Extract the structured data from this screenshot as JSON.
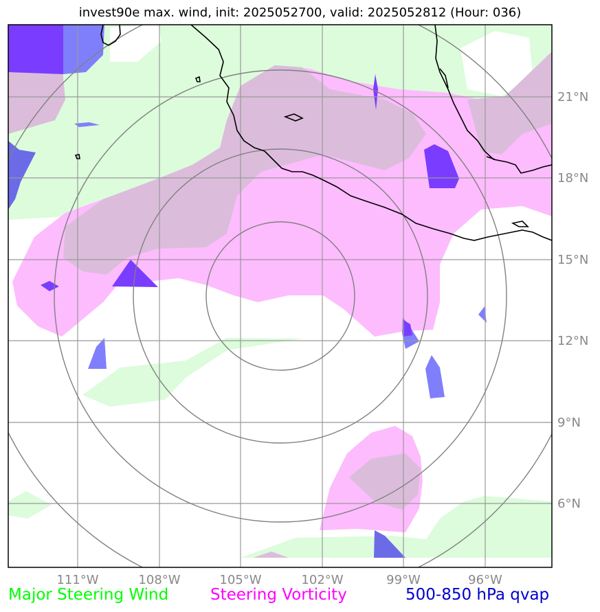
{
  "title": "invest90e max. wind, init: 2025052700, valid: 2025052812 (Hour: 036)",
  "lon_labels": [
    "111°W",
    "108°W",
    "105°W",
    "102°W",
    "99°W",
    "96°W"
  ],
  "lat_labels": [
    "21°N",
    "18°N",
    "15°N",
    "12°N",
    "9°N",
    "6°N"
  ],
  "legend": [
    {
      "label": "Major Steering Wind",
      "color": "#00ff00"
    },
    {
      "label": "Steering Vorticity",
      "color": "#ff00ff"
    },
    {
      "label": "500-850 hPa qvap",
      "color": "#0000cc"
    }
  ],
  "colors": {
    "steering_wind_fill": "#dcfcdc",
    "vorticity_fill": "#fdbcfd",
    "overlap_fill": "#dbbddb",
    "qvap_light": "#7f7ffc",
    "qvap_medium": "#6b6be8",
    "qvap_dark": "#7a3cff",
    "gridline": "#999999",
    "range_rings": "#808080",
    "coastline": "#000000"
  }
}
